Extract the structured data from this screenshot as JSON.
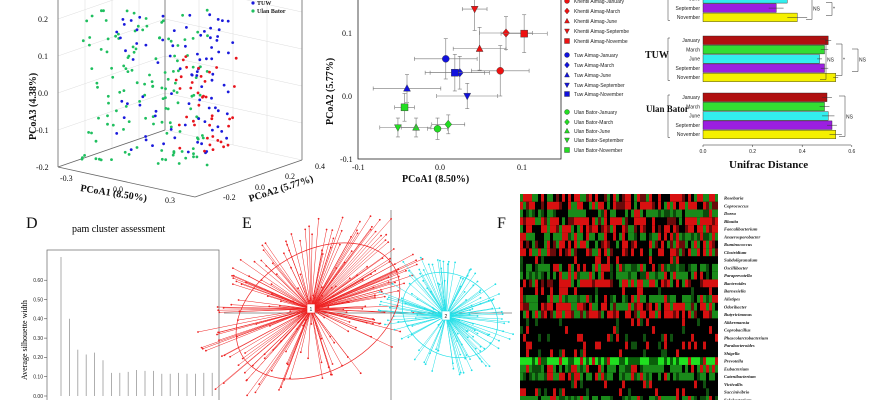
{
  "chart_data": [
    {
      "panel": "A",
      "type": "scatter",
      "title": "",
      "xlabel": "PCoA1 (8.50%)",
      "ylabel": "PCoA2 (5.77%)",
      "zlabel": "PCoA3 (4.38%)",
      "x_ticks": [
        "-0.3",
        "0.0",
        "0.3"
      ],
      "y_ticks": [
        "-0.2",
        "0.0",
        "0.2",
        "0.4"
      ],
      "z_ticks": [
        "0.2",
        "0.1",
        "0.0",
        "-0.1",
        "-0.2"
      ],
      "legend": [
        {
          "name": "TUW",
          "color": "#1a1adc"
        },
        {
          "name": "Ulan Bator",
          "color": "#1fbf5f"
        }
      ],
      "group_colors": {
        "Khentii": "#e8141c",
        "TUW": "#1a1adc",
        "Ulan Bator": "#1fbf5f"
      }
    },
    {
      "panel": "B",
      "type": "scatter",
      "xlabel": "PCoA1 (8.50%)",
      "ylabel": "PCoA2 (5.77%)",
      "xlim": [
        -0.1,
        0.145
      ],
      "ylim": [
        -0.1,
        0.15
      ],
      "x_ticks": [
        "-0.1",
        "0.0",
        "0.1"
      ],
      "y_ticks": [
        "0.1",
        "0.0",
        "-0.1"
      ],
      "series": [
        {
          "name": "Khentii Aimag-January",
          "shape": "circle",
          "color": "#ee1111",
          "x": 0.073,
          "y": 0.04,
          "ex": 0.035,
          "ey": 0.04
        },
        {
          "name": "Khentii Aimag-March",
          "shape": "diamond",
          "color": "#ee1111",
          "x": 0.08,
          "y": 0.1,
          "ex": 0.032,
          "ey": 0.026
        },
        {
          "name": "Khentii Aimag-June",
          "shape": "triangle-up",
          "color": "#ee1111",
          "x": 0.048,
          "y": 0.075,
          "ex": 0.032,
          "ey": 0.034
        },
        {
          "name": "Khentii Aimag-Septembe",
          "shape": "triangle-down",
          "color": "#ee1111",
          "x": 0.042,
          "y": 0.138,
          "ex": 0.015,
          "ey": 0.034
        },
        {
          "name": "Khentii Aimag-Novembe",
          "shape": "square",
          "color": "#ee1111",
          "x": 0.102,
          "y": 0.099,
          "ex": 0.028,
          "ey": 0.03
        },
        {
          "name": "Tuw Aimag-January",
          "shape": "circle",
          "color": "#1111dd",
          "x": 0.007,
          "y": 0.059,
          "ex": 0.038,
          "ey": 0.032
        },
        {
          "name": "Tuw Aimag-March",
          "shape": "diamond",
          "color": "#1111dd",
          "x": 0.024,
          "y": 0.037,
          "ex": 0.036,
          "ey": 0.026
        },
        {
          "name": "Tuw Aimag-June",
          "shape": "triangle-up",
          "color": "#1111dd",
          "x": -0.04,
          "y": 0.012,
          "ex": 0.041,
          "ey": 0.022
        },
        {
          "name": "Tuw Aimag-September",
          "shape": "triangle-down",
          "color": "#1111dd",
          "x": 0.033,
          "y": 0.0,
          "ex": 0.037,
          "ey": 0.02
        },
        {
          "name": "Tuw Aimag-November",
          "shape": "square",
          "color": "#1111dd",
          "x": 0.018,
          "y": 0.037,
          "ex": 0.036,
          "ey": 0.029
        },
        {
          "name": "Ulan Bator-January",
          "shape": "circle",
          "color": "#22dd22",
          "x": -0.003,
          "y": -0.052,
          "ex": 0.012,
          "ey": 0.017
        },
        {
          "name": "Ulan Bator-March",
          "shape": "diamond",
          "color": "#22dd22",
          "x": 0.01,
          "y": -0.045,
          "ex": 0.02,
          "ey": 0.015
        },
        {
          "name": "Ulan Bator-June",
          "shape": "triangle-up",
          "color": "#22dd22",
          "x": -0.029,
          "y": -0.05,
          "ex": 0.018,
          "ey": 0.015
        },
        {
          "name": "Ulan Bator-September",
          "shape": "triangle-down",
          "color": "#22dd22",
          "x": -0.051,
          "y": -0.05,
          "ex": 0.022,
          "ey": 0.015
        },
        {
          "name": "Ulan Bator-November",
          "shape": "square",
          "color": "#22dd22",
          "x": -0.043,
          "y": -0.018,
          "ex": 0.012,
          "ey": 0.022
        }
      ]
    },
    {
      "panel": "C",
      "type": "bar",
      "orientation": "horizontal",
      "xlabel": "Unifrac Distance",
      "xlim": [
        0,
        0.6
      ],
      "x_ticks": [
        "0.0",
        "0.2",
        "0.4",
        "0.6"
      ],
      "month_colors": {
        "January": "#b01010",
        "March": "#33dd33",
        "June": "#33eeee",
        "September": "#9b1fe0",
        "November": "#f5f000"
      },
      "groups": [
        {
          "name": "",
          "bars": [
            {
              "month": "June",
              "value": 0.34,
              "err": 0.02
            },
            {
              "month": "September",
              "value": 0.295,
              "err": 0.03
            },
            {
              "month": "November",
              "value": 0.38,
              "err": 0.04
            }
          ],
          "sig": [
            "NS",
            "*"
          ]
        },
        {
          "name": "TUW",
          "bars": [
            {
              "month": "January",
              "value": 0.505,
              "err": 0.012
            },
            {
              "month": "March",
              "value": 0.49,
              "err": 0.015
            },
            {
              "month": "June",
              "value": 0.47,
              "err": 0.01
            },
            {
              "month": "September",
              "value": 0.49,
              "err": 0.015
            },
            {
              "month": "November",
              "value": 0.535,
              "err": 0.01
            }
          ],
          "sig": [
            "NS",
            "*",
            "NS"
          ]
        },
        {
          "name": "Ulan Bator",
          "bars": [
            {
              "month": "January",
              "value": 0.5,
              "err": 0.02
            },
            {
              "month": "March",
              "value": 0.49,
              "err": 0.02
            },
            {
              "month": "June",
              "value": 0.505,
              "err": 0.025
            },
            {
              "month": "September",
              "value": 0.52,
              "err": 0.02
            },
            {
              "month": "November",
              "value": 0.535,
              "err": 0.025
            }
          ],
          "sig": [
            "NS"
          ]
        }
      ]
    },
    {
      "panel": "D",
      "type": "bar",
      "label": "D",
      "title": "pam cluster assessment",
      "ylabel": "Average silhouette width",
      "y_ticks": [
        "0.60",
        "0.50",
        "0.40",
        "0.30",
        "0.20",
        "0.10",
        "0.00"
      ],
      "ylim": [
        0,
        0.72
      ],
      "values": [
        0.72,
        0.4,
        0.24,
        0.215,
        0.225,
        0.185,
        0.12,
        0.12,
        0.125,
        0.135,
        0.13,
        0.13,
        0.115,
        0.115,
        0.12,
        0.115,
        0.115,
        0.12,
        0.12
      ]
    },
    {
      "panel": "E",
      "type": "scatter",
      "label": "E",
      "clusters": [
        {
          "name": "1",
          "color": "#ee2222"
        },
        {
          "name": "2",
          "color": "#22e0e8"
        }
      ]
    },
    {
      "panel": "F",
      "type": "heatmap",
      "label": "F",
      "rows": [
        "Roseburia",
        "Coprococcus",
        "Dorea",
        "Blautia",
        "Faecalibacterium",
        "Anaerosporobacter",
        "Ruminococcus",
        "Clostridium",
        "Subdoligranulum",
        "Oscillibacter",
        "Paraprevotella",
        "Bacteroides",
        "Barnesiella",
        "Alistipes",
        "Odoribacter",
        "Butyricimonas",
        "Akkermansia",
        "Coprobacillus",
        "Phascolarctobacterium",
        "Parabacteroides",
        "Shigella",
        "Prevotella",
        "Eubacterium",
        "Catenibacterium",
        "Victivallis",
        "Succinivibrio",
        "Solobacterium"
      ]
    }
  ]
}
